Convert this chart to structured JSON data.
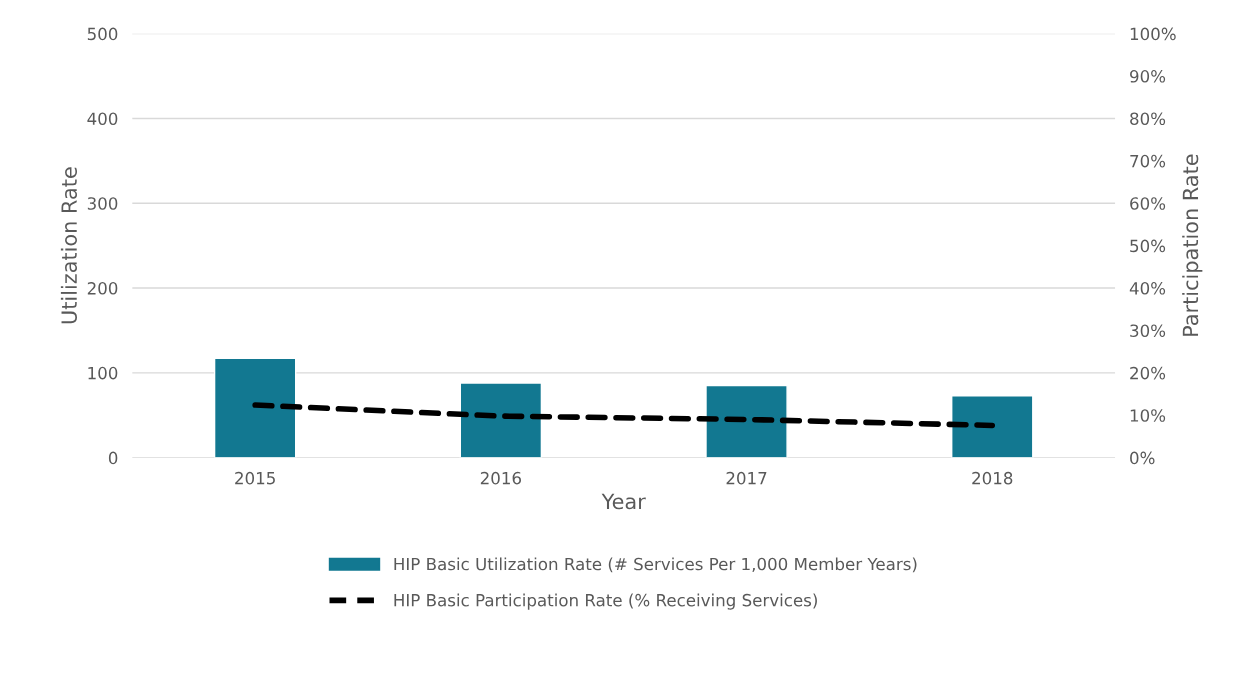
{
  "chart_data": {
    "type": "bar",
    "categories": [
      "2015",
      "2016",
      "2017",
      "2018"
    ],
    "xlabel": "Year",
    "ylabel": "Utilization Rate",
    "y2label": "Participation Rate",
    "series": [
      {
        "name": "HIP Basic Utilization Rate (# Services Per 1,000 Member Years)",
        "color": "#127891",
        "values": [
          117,
          88,
          85,
          73
        ]
      },
      {
        "name": "HIP Basic Participation Rate (% Receiving Services)",
        "type": "line",
        "axis": "y2",
        "color": "#000000",
        "line_style": "dashed",
        "values": [
          12.4,
          9.8,
          9.0,
          7.6
        ]
      }
    ],
    "ylim": [
      0,
      500
    ],
    "yticks": [
      0,
      100,
      200,
      300,
      400,
      500
    ],
    "y2lim": [
      0,
      100
    ],
    "y2ticks": [
      {
        "value": 0,
        "label": "0%"
      },
      {
        "value": 10,
        "label": "10%"
      },
      {
        "value": 20,
        "label": "20%"
      },
      {
        "value": 30,
        "label": "30%"
      },
      {
        "value": 40,
        "label": "40%"
      },
      {
        "value": 50,
        "label": "50%"
      },
      {
        "value": 60,
        "label": "60%"
      },
      {
        "value": 70,
        "label": "70%"
      },
      {
        "value": 80,
        "label": "80%"
      },
      {
        "value": 90,
        "label": "90%"
      },
      {
        "value": 100,
        "label": "100%"
      }
    ],
    "grid": "y",
    "legend": "bottom"
  }
}
